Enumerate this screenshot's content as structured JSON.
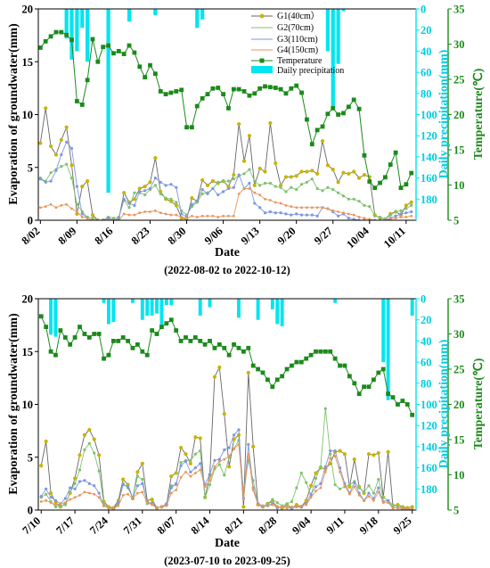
{
  "colors": {
    "g1": "#c8b400",
    "g2": "#7fc26e",
    "g3": "#7f96dc",
    "g4": "#e8965a",
    "g1_line": "#666666",
    "precip": "#00e5f0",
    "temp": "#1b8a1b",
    "axis": "#000000"
  },
  "icons": {
    "g_marker": "filled-circle",
    "temp_marker": "filled-square",
    "precip_legend": "cyan-rectangle"
  },
  "chart_data": [
    {
      "type": "line",
      "xlabel": "Date",
      "caption": "(2022-08-02 to 2022-10-12)",
      "ylabel_left": "Evaporation of groundwater(mm)",
      "ylabel_right_precip": "Daily precipitation(mm)",
      "ylabel_right_temp": "Temperature(℃)",
      "legend_position": "top-right",
      "x_tick_labels": [
        "8/02",
        "8/09",
        "8/16",
        "8/23",
        "8/30",
        "9/06",
        "9/13",
        "9/20",
        "9/27",
        "10/04",
        "10/11"
      ],
      "x_tick_days": [
        0,
        7,
        14,
        21,
        28,
        35,
        42,
        49,
        56,
        63,
        70
      ],
      "ylim_left": [
        0,
        20
      ],
      "yticks_left": [
        0,
        5,
        10,
        15,
        20
      ],
      "ylim_precip_reversed": [
        0,
        200
      ],
      "yticks_precip": [
        0,
        20,
        40,
        60,
        80,
        100,
        120,
        140,
        160,
        180
      ],
      "ylim_temp": [
        5,
        35
      ],
      "yticks_temp": [
        5,
        10,
        15,
        20,
        25,
        30,
        35
      ],
      "series": [
        {
          "name": "G1(40cm）",
          "values": [
            7.3,
            10.6,
            7.0,
            6.2,
            7.6,
            8.8,
            5.2,
            0.6,
            3.2,
            3.7,
            0.5,
            0,
            0,
            0.2,
            0,
            0.1,
            2.6,
            1.7,
            2.0,
            3.0,
            3.2,
            3.6,
            5.9,
            2.7,
            2.0,
            1.8,
            1.4,
            0.2,
            0.1,
            2.1,
            1.8,
            3.8,
            3.3,
            3.7,
            3.5,
            3.7,
            3.2,
            4.3,
            9.1,
            5.6,
            8.0,
            3.3,
            4.9,
            4.6,
            9.2,
            5.4,
            3.3,
            4.1,
            4.1,
            4.2,
            4.6,
            4.6,
            4.7,
            4.4,
            7.5,
            5.2,
            4.8,
            3.6,
            4.5,
            4.4,
            4.6,
            4.0,
            4.3,
            4.1,
            0.5,
            0.2,
            0.1,
            0.6,
            0.8,
            0.5,
            1.4,
            1.7
          ]
        },
        {
          "name": "G2(70cm)",
          "values": [
            4.0,
            3.7,
            4.5,
            4.8,
            5.1,
            5.3,
            4.0,
            1.5,
            0.8,
            0.3,
            0.2,
            0,
            0,
            0.3,
            0.2,
            0.3,
            1.9,
            1.2,
            2.6,
            2.6,
            2.4,
            2.9,
            3.3,
            2.5,
            2.1,
            2.0,
            1.7,
            0.9,
            0.5,
            1.3,
            1.7,
            2.5,
            2.6,
            3.0,
            3.6,
            3.7,
            3.7,
            3.9,
            4.2,
            4.4,
            4.8,
            3.7,
            3.3,
            3.5,
            3.5,
            3.2,
            3.1,
            2.7,
            3.1,
            2.9,
            3.4,
            3.6,
            3.9,
            3.0,
            2.8,
            3.1,
            2.9,
            2.6,
            2.3,
            2.0,
            2.0,
            1.8,
            1.4,
            1.3,
            0.4,
            0.3,
            0.1,
            0.5,
            0.8,
            0.9,
            1.1,
            1.4
          ]
        },
        {
          "name": "G3(110cm)",
          "values": [
            3.9,
            3.6,
            3.7,
            4.7,
            6.2,
            7.4,
            6.8,
            3.2,
            0.6,
            0.2,
            0,
            0,
            0,
            0.2,
            0,
            0.2,
            2.0,
            1.6,
            1.4,
            2.7,
            2.8,
            3.0,
            4.0,
            3.6,
            3.3,
            3.4,
            3.1,
            0.6,
            0.3,
            1.5,
            1.8,
            2.9,
            2.5,
            3.0,
            2.4,
            2.7,
            3.0,
            3.1,
            4.3,
            3.0,
            3.5,
            1.6,
            1.2,
            0.7,
            0.8,
            0.7,
            0.7,
            0.6,
            0.5,
            0.6,
            0.5,
            0.5,
            0.5,
            0.4,
            1.2,
            1.1,
            0.8,
            0.4,
            0.6,
            0.2,
            0.1,
            0,
            0,
            0,
            0,
            0,
            0,
            0.2,
            0.4,
            0.6,
            0.7,
            0.8
          ]
        },
        {
          "name": "G4(150cm)",
          "values": [
            1.2,
            1.3,
            1.5,
            1.2,
            1.4,
            1.5,
            1.1,
            0.8,
            0.3,
            0.2,
            0,
            0,
            0,
            0,
            0,
            0,
            0.6,
            0.5,
            0.5,
            0.7,
            0.8,
            0.8,
            0.9,
            0.7,
            0.6,
            0.5,
            0.5,
            0.3,
            0.2,
            0.4,
            0.3,
            0.4,
            0.4,
            0.4,
            0.3,
            0.4,
            0.4,
            0.4,
            2.5,
            3.0,
            3.0,
            2.6,
            2.4,
            2.0,
            1.9,
            1.7,
            1.6,
            1.4,
            1.3,
            1.2,
            1.2,
            1.2,
            1.2,
            1.2,
            1.2,
            1.1,
            0.9,
            0.8,
            0.7,
            0.6,
            0.5,
            0.3,
            0.2,
            0.1,
            0,
            0,
            0,
            0.1,
            0.2,
            0.3,
            0.3,
            0.4
          ]
        },
        {
          "name": "Temperature",
          "axis": "temp",
          "values": [
            29.5,
            30.4,
            31.1,
            31.7,
            31.7,
            31.3,
            30.6,
            21.9,
            21.4,
            24.9,
            30.7,
            27.5,
            29.6,
            29.8,
            28.7,
            29.0,
            28.6,
            29.8,
            28.8,
            26.8,
            25.3,
            27.0,
            25.8,
            23.3,
            22.9,
            23.1,
            23.3,
            23.5,
            18.2,
            18.2,
            21.2,
            22.3,
            22.9,
            23.7,
            23.8,
            22.9,
            20.9,
            23.6,
            23.6,
            23.3,
            22.7,
            23.0,
            23.7,
            24.0,
            23.9,
            23.8,
            23.6,
            23.0,
            23.7,
            24.1,
            23.1,
            19.3,
            15.8,
            17.8,
            18.3,
            20.1,
            20.9,
            20.0,
            20.2,
            21.1,
            22.1,
            20.8,
            14.2,
            10.5,
            9.6,
            10.3,
            11.1,
            12.9,
            14.6,
            9.6,
            10.1,
            11.7
          ]
        },
        {
          "name": "Daily precipitation",
          "axis": "precip",
          "days": [
            5,
            6,
            7,
            8,
            9,
            13,
            17,
            22,
            30,
            31,
            55,
            56,
            57,
            58
          ],
          "values": [
            28,
            48,
            40,
            18,
            50,
            174,
            12,
            6,
            18,
            10,
            40,
            92,
            52,
            2
          ]
        }
      ]
    },
    {
      "type": "line",
      "xlabel": "Date",
      "caption": "(2023-07-10 to 2023-09-25)",
      "ylabel_left": "Evaporation of groundwater(mm)",
      "ylabel_right_precip": "Daily precipitation(mm)",
      "ylabel_right_temp": "Temperature(℃)",
      "x_tick_labels": [
        "7/10",
        "7/17",
        "7/24",
        "7/31",
        "8/07",
        "8/14",
        "8/21",
        "8/28",
        "9/04",
        "9/11",
        "9/18",
        "9/25"
      ],
      "x_tick_days": [
        0,
        7,
        14,
        21,
        28,
        35,
        42,
        49,
        56,
        63,
        70,
        77
      ],
      "ylim_left": [
        0,
        20
      ],
      "yticks_left": [
        0,
        5,
        10,
        15,
        20
      ],
      "ylim_precip_reversed": [
        0,
        200
      ],
      "yticks_precip": [
        0,
        20,
        40,
        60,
        80,
        100,
        120,
        140,
        160,
        180
      ],
      "ylim_temp": [
        5,
        35
      ],
      "yticks_temp": [
        5,
        10,
        15,
        20,
        25,
        30,
        35
      ],
      "series": [
        {
          "name": "G1(40cm）",
          "values": [
            4.2,
            6.5,
            1.6,
            0.7,
            0.3,
            0.6,
            1.6,
            3.0,
            5.2,
            7.1,
            7.6,
            6.7,
            5.2,
            0.8,
            0.3,
            0.2,
            0.9,
            2.9,
            2.4,
            1.1,
            3.6,
            4.4,
            0.9,
            1.0,
            0.2,
            0.3,
            0.5,
            3.2,
            3.5,
            5.9,
            5.3,
            4.4,
            6.9,
            6.8,
            1.2,
            3.3,
            12.6,
            13.5,
            9.1,
            4.1,
            6.7,
            7.1,
            0.3,
            13.0,
            6.0,
            0.5,
            0.3,
            0.6,
            0.8,
            0.3,
            0.2,
            0.5,
            0.2,
            0.5,
            0.3,
            0.9,
            2.3,
            3.5,
            4.0,
            3.9,
            4.4,
            5.5,
            5.6,
            5.3,
            2.2,
            4.8,
            2.2,
            1.6,
            5.3,
            5.2,
            5.4,
            1.2,
            5.5,
            0.4,
            0.5,
            0.3,
            0.2,
            0.3
          ]
        },
        {
          "name": "G2(70cm)",
          "values": [
            1.2,
            1.5,
            0.8,
            0.3,
            0.4,
            0.5,
            1.7,
            2.5,
            3.8,
            5.7,
            6.3,
            5.4,
            3.7,
            0.6,
            0.2,
            0.1,
            0.6,
            2.5,
            2.1,
            1.2,
            3.2,
            2.9,
            0.6,
            0.7,
            0.2,
            0.3,
            0.5,
            2.3,
            2.4,
            4.5,
            4.7,
            4.7,
            5.3,
            5.6,
            1.2,
            2.4,
            3.9,
            4.3,
            3.3,
            5.0,
            5.8,
            6.6,
            1.8,
            4.7,
            2.8,
            0.6,
            0.3,
            0.6,
            1.0,
            0.7,
            0.4,
            0.6,
            0.8,
            2.1,
            3.5,
            2.6,
            1.4,
            3.0,
            4.1,
            9.6,
            5.3,
            2.4,
            2.0,
            2.2,
            2.4,
            2.7,
            2.1,
            1.7,
            2.3,
            1.6,
            2.9,
            1.2,
            0.9,
            0.5,
            0.3,
            0.2,
            0.1,
            0.1
          ]
        },
        {
          "name": "G3(110cm)",
          "values": [
            1.3,
            2.0,
            1.2,
            0.9,
            0.6,
            1.1,
            2.1,
            2.0,
            2.7,
            2.8,
            2.5,
            2.3,
            1.6,
            0.4,
            0.2,
            0.1,
            0.7,
            2.4,
            2.2,
            1.1,
            2.3,
            2.5,
            0.8,
            0.6,
            0.2,
            0.3,
            0.6,
            2.1,
            2.5,
            4.2,
            4.6,
            3.6,
            4.0,
            4.4,
            2.4,
            3.4,
            4.7,
            4.8,
            5.7,
            5.9,
            7.1,
            7.6,
            1.1,
            6.2,
            2.1,
            0.6,
            0.4,
            0.4,
            0.6,
            0.2,
            0.3,
            0.2,
            0.2,
            0.3,
            0.3,
            0.6,
            1.5,
            2.2,
            2.5,
            4.1,
            5.6,
            5.6,
            4.0,
            2.5,
            1.6,
            2.6,
            1.6,
            0.9,
            1.6,
            1.1,
            2.1,
            0.8,
            0.9,
            0.2,
            0.2,
            0.1,
            0.1,
            0.1
          ]
        },
        {
          "name": "G4(150cm)",
          "values": [
            0.8,
            0.9,
            0.7,
            0.5,
            0.6,
            0.7,
            1.0,
            1.2,
            1.4,
            1.7,
            1.6,
            1.5,
            1.2,
            0.4,
            0.2,
            0.1,
            0.4,
            1.4,
            1.5,
            1.1,
            1.6,
            1.7,
            0.7,
            0.5,
            0.2,
            0.3,
            0.4,
            1.6,
            1.9,
            3.1,
            3.6,
            3.2,
            3.5,
            3.8,
            2.2,
            2.8,
            4.1,
            4.6,
            4.8,
            5.1,
            5.8,
            6.2,
            1.0,
            5.3,
            1.9,
            0.5,
            0.4,
            0.4,
            0.5,
            0.3,
            0.3,
            0.2,
            0.3,
            0.3,
            0.4,
            0.5,
            1.2,
            1.8,
            2.1,
            3.6,
            4.9,
            5.1,
            3.6,
            2.3,
            1.5,
            2.2,
            1.4,
            0.9,
            1.3,
            0.9,
            1.7,
            0.7,
            0.7,
            0.2,
            0.2,
            0.1,
            0.1,
            0.1
          ]
        },
        {
          "name": "Temperature",
          "axis": "temp",
          "values": [
            32.5,
            31.0,
            27.5,
            27.0,
            30.5,
            29.5,
            28.5,
            29.5,
            31.0,
            30.0,
            29.5,
            30.0,
            30.0,
            26.5,
            27.0,
            29.0,
            29.0,
            29.5,
            29.0,
            28.0,
            28.5,
            27.5,
            27.0,
            30.5,
            30.0,
            31.0,
            31.5,
            32.0,
            30.5,
            29.0,
            29.5,
            29.0,
            29.5,
            29.0,
            28.5,
            29.0,
            28.0,
            28.5,
            28.0,
            27.0,
            28.5,
            28.0,
            27.5,
            28.0,
            25.5,
            25.0,
            24.5,
            23.5,
            22.5,
            23.5,
            24.0,
            25.0,
            25.5,
            26.0,
            26.0,
            26.5,
            27.0,
            27.5,
            27.5,
            27.5,
            27.5,
            26.5,
            25.5,
            25.5,
            24.0,
            23.0,
            21.5,
            22.5,
            22.5,
            23.5,
            24.5,
            25.0,
            21.5,
            21.0,
            20.0,
            20.5,
            20.0,
            18.5
          ]
        },
        {
          "name": "Daily precipitation",
          "axis": "precip",
          "days": [
            2,
            3,
            13,
            14,
            15,
            19,
            21,
            22,
            23,
            24,
            25,
            26,
            27,
            33,
            35,
            41,
            45,
            48,
            49,
            50,
            61,
            71,
            72,
            77
          ],
          "values": [
            34,
            36,
            4,
            24,
            22,
            4,
            20,
            16,
            16,
            14,
            26,
            6,
            6,
            16,
            8,
            18,
            20,
            10,
            24,
            26,
            4,
            60,
            96,
            16
          ]
        }
      ]
    }
  ]
}
